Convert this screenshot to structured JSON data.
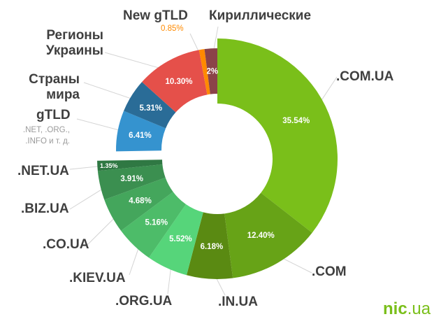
{
  "chart_data": {
    "type": "donut",
    "groups": [
      {
        "name": "ua",
        "series": [
          {
            "label": ".COM.UA",
            "value": 35.54,
            "text": "35.54%",
            "color": "#7abf1a"
          },
          {
            "label": ".COM",
            "value": 12.4,
            "text": "12.40%",
            "color": "#67a317"
          },
          {
            "label": ".IN.UA",
            "value": 6.18,
            "text": "6.18%",
            "color": "#5a8a12"
          },
          {
            "label": ".ORG.UA",
            "value": 5.52,
            "text": "5.52%",
            "color": "#56d57a"
          },
          {
            "label": ".KIEV.UA",
            "value": 5.16,
            "text": "5.16%",
            "color": "#4dbc69"
          },
          {
            "label": ".CO.UA",
            "value": 4.68,
            "text": "4.68%",
            "color": "#44a65c"
          },
          {
            "label": ".BIZ.UA",
            "value": 3.91,
            "text": "3.91%",
            "color": "#3b8f50"
          },
          {
            "label": ".NET.UA",
            "value": 1.35,
            "text": "1.35%",
            "color": "#2f7843"
          }
        ]
      },
      {
        "name": "other",
        "series": [
          {
            "label": "gTLD",
            "sublabel": ".NET, .ORG., .INFO и т. д.",
            "value": 6.41,
            "text": "6.41%",
            "color": "#3593cf"
          },
          {
            "label": "Страны мира",
            "value": 5.31,
            "text": "5.31%",
            "color": "#2a6c97"
          },
          {
            "label": "Регионы Украины",
            "value": 10.3,
            "text": "10.30%",
            "color": "#e5504a"
          },
          {
            "label": "New gTLD",
            "value": 0.85,
            "text": "0.85%",
            "color": "#ff8a00"
          },
          {
            "label": "Кириллические",
            "value": 2,
            "text": "2%",
            "color": "#8b4349"
          }
        ]
      }
    ]
  },
  "brand": {
    "logo_main": "nic",
    "logo_suffix": ".ua",
    "color": "#7abf1a"
  }
}
